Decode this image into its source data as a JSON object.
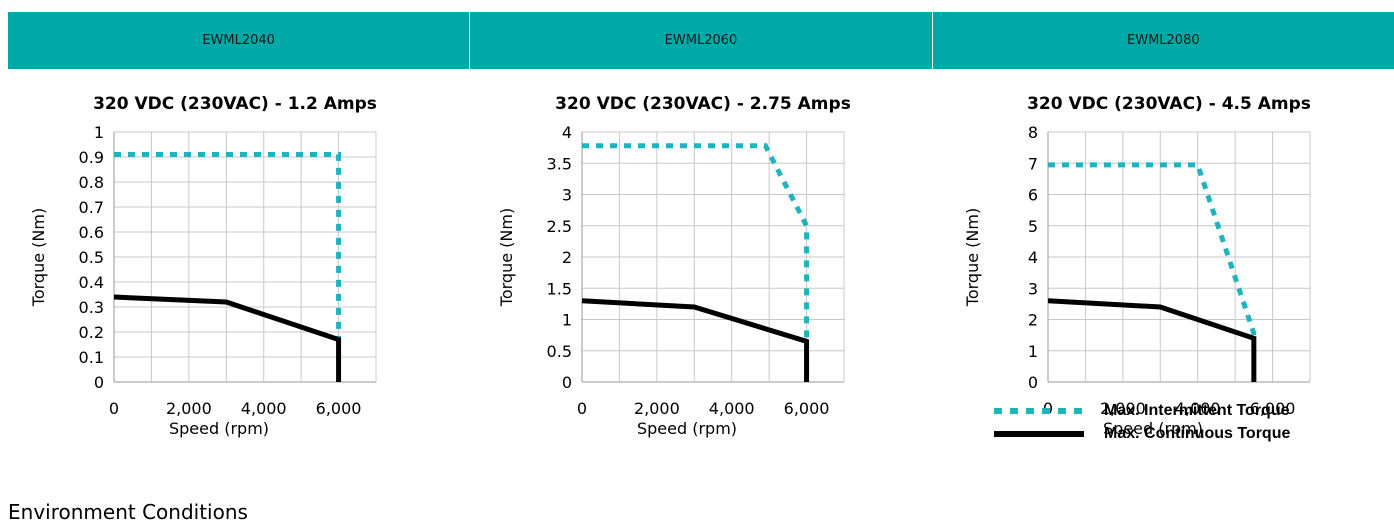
{
  "header": {
    "columns": [
      "EWML2040",
      "EWML2060",
      "EWML2080"
    ]
  },
  "chart_data": [
    {
      "type": "line",
      "title": "320 VDC (230VAC) -  1.2 Amps",
      "xlabel": "Speed (rpm)",
      "ylabel": "Torque (Nm)",
      "xlim": [
        0,
        7000
      ],
      "ylim": [
        0,
        1
      ],
      "xticks": [
        0,
        2000,
        4000,
        6000
      ],
      "xtick_labels": [
        "0",
        "2,000",
        "4,000",
        "6,000"
      ],
      "yticks": [
        0,
        0.1,
        0.2,
        0.3,
        0.4,
        0.5,
        0.6,
        0.7,
        0.8,
        0.9,
        1
      ],
      "ytick_labels": [
        "0",
        "0.1",
        "0.2",
        "0.3",
        "0.4",
        "0.5",
        "0.6",
        "0.7",
        "0.8",
        "0.9",
        "1"
      ],
      "grid": true,
      "series": [
        {
          "name": "Max. Intermittent Torque",
          "style": "dashed",
          "color": "#1fb3bf",
          "x": [
            0,
            6000,
            6000
          ],
          "y": [
            0.91,
            0.91,
            0.17
          ]
        },
        {
          "name": "Max. Continuous Torque",
          "style": "solid",
          "color": "#000000",
          "x": [
            0,
            3000,
            6000,
            6000
          ],
          "y": [
            0.34,
            0.32,
            0.17,
            0
          ]
        }
      ]
    },
    {
      "type": "line",
      "title": "320 VDC (230VAC) -  2.75 Amps",
      "xlabel": "Speed (rpm)",
      "ylabel": "Torque (Nm)",
      "xlim": [
        0,
        7000
      ],
      "ylim": [
        0,
        4
      ],
      "xticks": [
        0,
        2000,
        4000,
        6000
      ],
      "xtick_labels": [
        "0",
        "2,000",
        "4,000",
        "6,000"
      ],
      "yticks": [
        0,
        0.5,
        1,
        1.5,
        2,
        2.5,
        3,
        3.5,
        4
      ],
      "ytick_labels": [
        "0",
        "0.5",
        "1",
        "1.5",
        "2",
        "2.5",
        "3",
        "3.5",
        "4"
      ],
      "grid": true,
      "series": [
        {
          "name": "Max. Intermittent Torque",
          "style": "dashed",
          "color": "#1fb3bf",
          "x": [
            0,
            4900,
            6000,
            6000
          ],
          "y": [
            3.78,
            3.78,
            2.5,
            0.65
          ]
        },
        {
          "name": "Max. Continuous Torque",
          "style": "solid",
          "color": "#000000",
          "x": [
            0,
            3000,
            6000,
            6000
          ],
          "y": [
            1.3,
            1.2,
            0.65,
            0
          ]
        }
      ]
    },
    {
      "type": "line",
      "title": "320 VDC (230VAC) -  4.5 Amps",
      "xlabel": "Speed (rpm)",
      "ylabel": "Torque (Nm)",
      "xlim": [
        0,
        7000
      ],
      "ylim": [
        0,
        8
      ],
      "xticks": [
        0,
        2000,
        4000,
        6000
      ],
      "xtick_labels": [
        "0",
        "2,000",
        "4,000",
        "6,000"
      ],
      "yticks": [
        0,
        1,
        2,
        3,
        4,
        5,
        6,
        7,
        8
      ],
      "ytick_labels": [
        "0",
        "1",
        "2",
        "3",
        "4",
        "5",
        "6",
        "7",
        "8"
      ],
      "grid": true,
      "series": [
        {
          "name": "Max. Intermittent Torque",
          "style": "dashed",
          "color": "#1fb3bf",
          "x": [
            0,
            4000,
            5500,
            5500
          ],
          "y": [
            6.95,
            6.95,
            1.55,
            1.4
          ]
        },
        {
          "name": "Max. Continuous Torque",
          "style": "solid",
          "color": "#000000",
          "x": [
            0,
            3000,
            5500,
            5500
          ],
          "y": [
            2.6,
            2.4,
            1.4,
            0
          ]
        }
      ]
    }
  ],
  "legend": {
    "intermittent": "Max. Intermittent Torque",
    "continuous": "Max. Continuous Torque"
  },
  "section": {
    "heading": "Environment Conditions"
  },
  "colors": {
    "header_bg": "#00a8a8",
    "intermittent": "#1fb3bf",
    "continuous": "#000000",
    "grid": "#c8c8c8"
  }
}
